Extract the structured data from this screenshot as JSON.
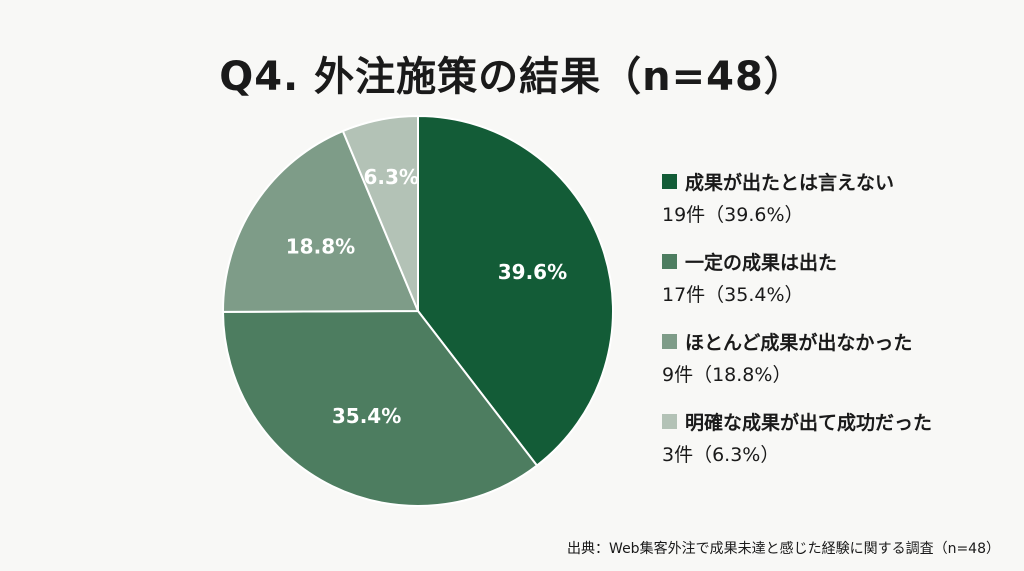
{
  "chart_data": {
    "type": "pie",
    "title": "Q4. 外注施策の結果（n=48）",
    "start": "top",
    "direction": "clockwise",
    "slices": [
      {
        "label": "成果が出たとは言えない",
        "count": 19,
        "percent": 39.6,
        "data_label": "39.6%",
        "legend_value": "19件（39.6%）",
        "color": "#135c37"
      },
      {
        "label": "一定の成果は出た",
        "count": 17,
        "percent": 35.4,
        "data_label": "35.4%",
        "legend_value": "17件（35.4%）",
        "color": "#4d7d60"
      },
      {
        "label": "ほとんど成果が出なかった",
        "count": 9,
        "percent": 18.8,
        "data_label": "18.8%",
        "legend_value": "9件（18.8%）",
        "color": "#7e9c88"
      },
      {
        "label": "明確な成果が出て成功だった",
        "count": 3,
        "percent": 6.3,
        "data_label": "6.3%",
        "legend_value": "3件（6.3%）",
        "color": "#b3c2b6"
      }
    ],
    "legend_position": "right",
    "source": "出典：Web集客外注で成果未達と感じた経験に関する調査（n=48）"
  }
}
